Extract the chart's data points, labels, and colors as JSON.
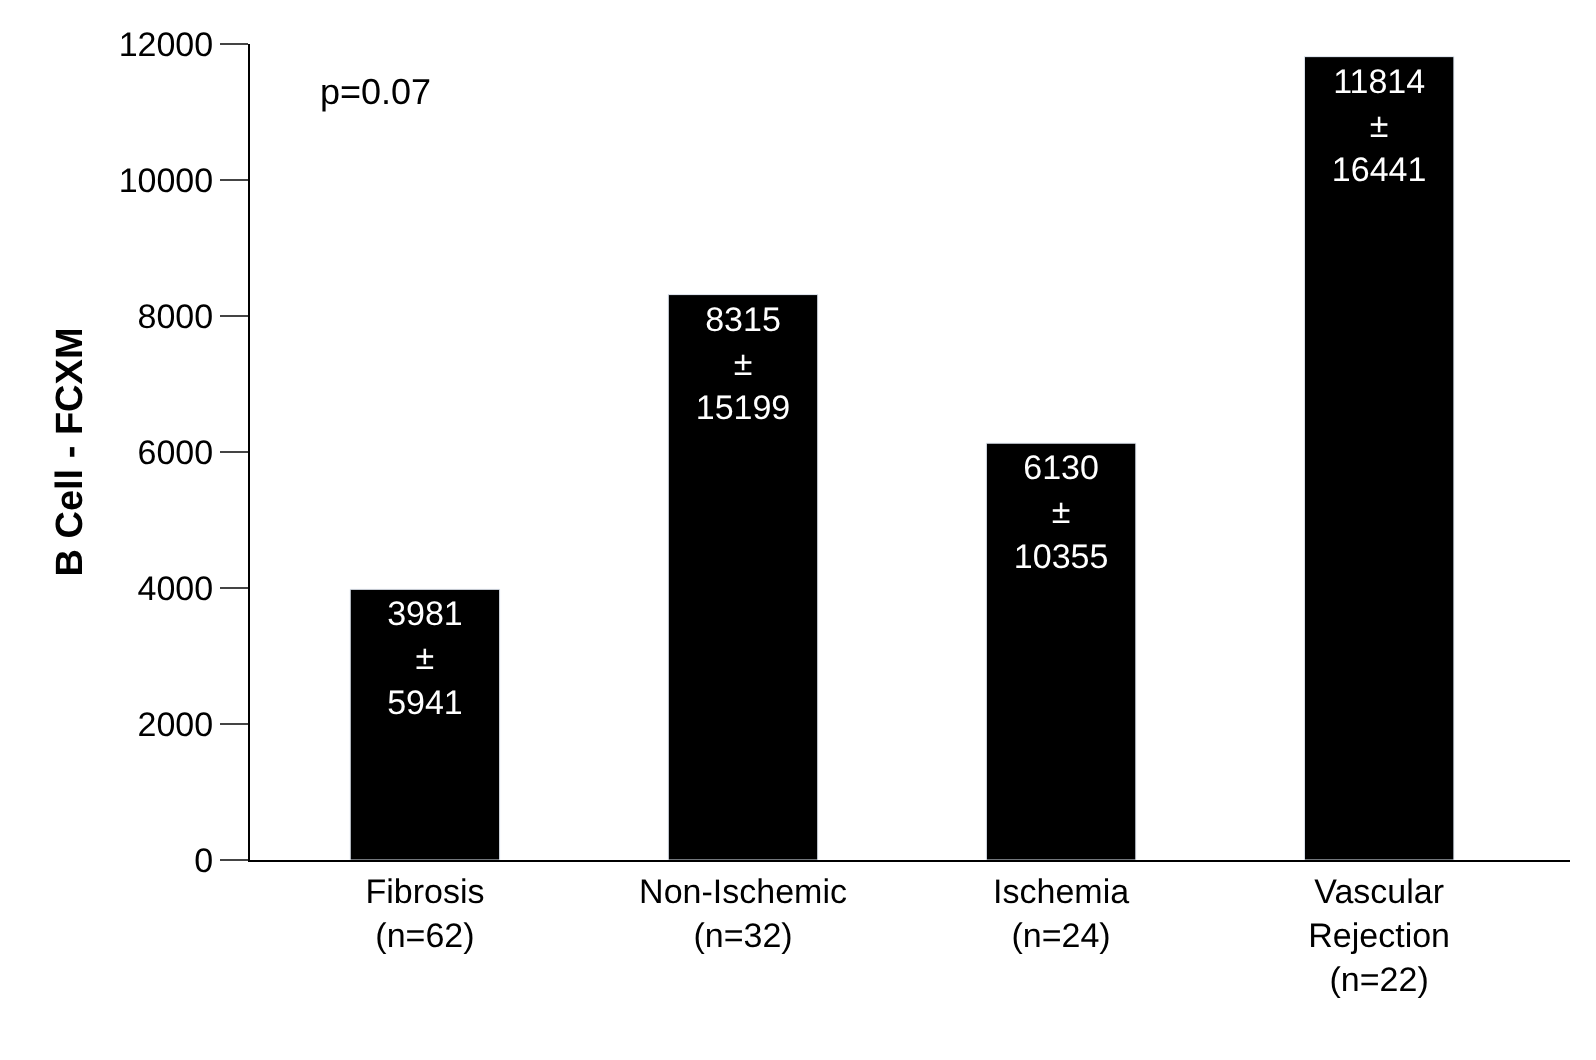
{
  "chart_data": {
    "type": "bar",
    "categories": [
      "Fibrosis\n(n=62)",
      "Non-Ischemic\n(n=32)",
      "Ischemia\n(n=24)",
      "Vascular\nRejection\n(n=22)"
    ],
    "values": [
      3981,
      8315,
      6130,
      11814
    ],
    "value_labels": [
      "3981\n±\n5941",
      "8315\n±\n15199",
      "6130\n±\n10355",
      "11814\n±\n16441"
    ],
    "color": "#000000",
    "ylabel": "B Cell - FCXM",
    "ylim": [
      0,
      12000
    ],
    "yticks": [
      0,
      2000,
      4000,
      6000,
      8000,
      10000,
      12000
    ],
    "annotations": [
      "p=0.07"
    ]
  }
}
